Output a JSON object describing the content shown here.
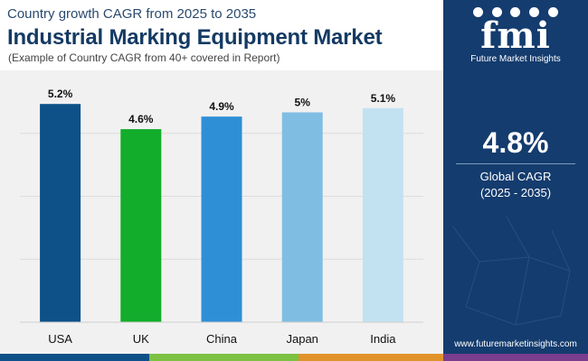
{
  "header": {
    "subtitle": "Country growth CAGR from 2025 to 2035",
    "title": "Industrial Marking Equipment Market",
    "note": "(Example of Country CAGR from 40+ covered in Report)"
  },
  "sidebar": {
    "logo_text": "fmi",
    "logo_subtitle": "Future Market Insights",
    "global_value": "4.8%",
    "global_label": "Global CAGR",
    "global_range": "(2025 - 2035)",
    "url": "www.futuremarketinsights.com"
  },
  "chart_data": {
    "type": "bar",
    "categories": [
      "USA",
      "UK",
      "China",
      "Japan",
      "India"
    ],
    "values": [
      5.2,
      4.6,
      4.9,
      5.0,
      5.1
    ],
    "data_labels": [
      "5.2%",
      "4.6%",
      "4.9%",
      "5%",
      "5.1%"
    ],
    "colors": [
      "#0d5188",
      "#12ad2b",
      "#2f8fd6",
      "#80bde3",
      "#c2e2f2"
    ],
    "ylim": [
      0,
      6.0
    ],
    "grid": true,
    "title": "",
    "xlabel": "",
    "ylabel": ""
  },
  "colors": {
    "sidebar_bg": "#143c6e",
    "chart_bg": "#f1f1f1",
    "title": "#143a63",
    "footer_stripes": [
      "#0d5188",
      "#7cc242",
      "#e0932b",
      "#7a3e8e",
      "#1d4e86"
    ]
  }
}
